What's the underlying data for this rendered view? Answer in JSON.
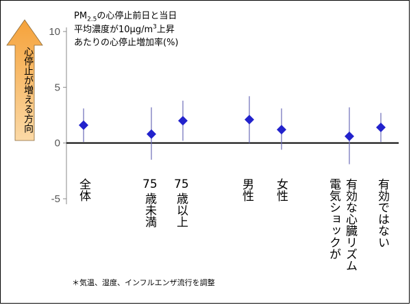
{
  "title": {
    "line1_pre": "PM",
    "line1_sub": "2.5",
    "line1_post": "の心停止前日と当日",
    "line2_pre": "平均濃度が10μg/m",
    "line2_sup": "3",
    "line2_post": "上昇",
    "line3": "あたりの心停止増加率(%)"
  },
  "arrow_label": "心停止が増える方向",
  "footnote": "＊気温、湿度、インフルエンザ流行を調整",
  "chart_data": {
    "type": "scatter",
    "ylim": [
      -5,
      10
    ],
    "yticks": [
      10,
      5,
      0,
      -5
    ],
    "marker_color": "#2222cc",
    "errorbar_color": "#6a6ab8",
    "categories": [
      {
        "label": "全体",
        "lines": [
          "全体"
        ],
        "estimate": 1.6,
        "lower": 0.1,
        "upper": 3.1
      },
      {
        "label": "75歳未満",
        "lines": [
          "75",
          "歳未満"
        ],
        "estimate": 0.8,
        "lower": -1.5,
        "upper": 3.2
      },
      {
        "label": "75歳以上",
        "lines": [
          "75",
          "歳以上"
        ],
        "estimate": 2.0,
        "lower": 0.2,
        "upper": 3.8
      },
      {
        "label": "男性",
        "lines": [
          "男性"
        ],
        "estimate": 2.1,
        "lower": 0.0,
        "upper": 4.2
      },
      {
        "label": "女性",
        "lines": [
          "女性"
        ],
        "estimate": 1.2,
        "lower": -0.6,
        "upper": 3.1
      },
      {
        "label": "有効な心臓リズム電気ショックが",
        "lines": [
          "有効な心臓リズム",
          "電気ショックが"
        ],
        "estimate": 0.6,
        "lower": -1.9,
        "upper": 3.2
      },
      {
        "label": "有効ではない",
        "lines": [
          "有効ではない"
        ],
        "estimate": 1.4,
        "lower": 0.1,
        "upper": 2.7
      }
    ]
  }
}
